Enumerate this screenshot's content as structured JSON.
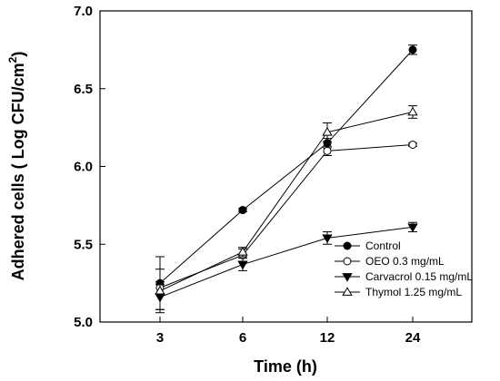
{
  "chart_data": {
    "type": "line",
    "categories": [
      "3",
      "6",
      "12",
      "24"
    ],
    "xlabel": "Time (h)",
    "ylabel_main": "Adhered cells ( Log CFU/cm",
    "ylabel_sup": "2",
    "ylabel_close": ")",
    "ylim": [
      5.0,
      7.0
    ],
    "yticks": [
      "5.0",
      "5.5",
      "6.0",
      "6.5",
      "7.0"
    ],
    "grid": false,
    "legend_position": "bottom-right",
    "series": [
      {
        "name": "Control",
        "marker": "circle-filled",
        "values": [
          5.25,
          5.72,
          6.15,
          6.75
        ],
        "errors": [
          0.17,
          0.01,
          0.03,
          0.03
        ]
      },
      {
        "name": "OEO 0.3 mg/mL",
        "marker": "circle-open",
        "values": [
          5.22,
          5.43,
          6.1,
          6.14
        ],
        "errors": [
          0.04,
          0.04,
          0.03,
          0.01
        ]
      },
      {
        "name": "Carvacrol 0.15 mg/mL",
        "marker": "triangle-down-filled",
        "values": [
          5.16,
          5.37,
          5.54,
          5.61
        ],
        "errors": [
          0.08,
          0.04,
          0.04,
          0.03
        ]
      },
      {
        "name": "Thymol 1.25 mg/mL",
        "marker": "triangle-up-open",
        "values": [
          5.2,
          5.45,
          6.22,
          6.35
        ],
        "errors": [
          0.14,
          0.03,
          0.06,
          0.04
        ]
      }
    ]
  }
}
